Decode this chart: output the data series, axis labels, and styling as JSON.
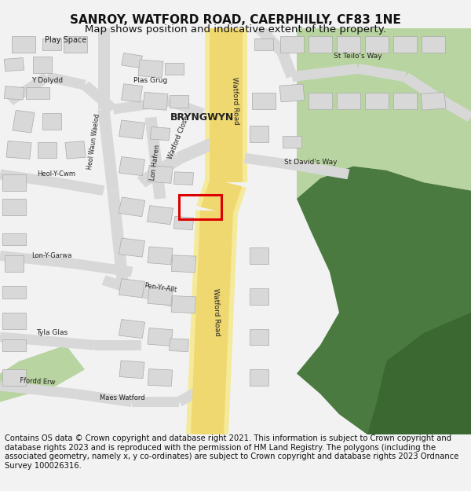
{
  "title": "SANROY, WATFORD ROAD, CAERPHILLY, CF83 1NE",
  "subtitle": "Map shows position and indicative extent of the property.",
  "footer": "Contains OS data © Crown copyright and database right 2021. This information is subject to Crown copyright and database rights 2023 and is reproduced with the permission of HM Land Registry. The polygons (including the associated geometry, namely x, y co-ordinates) are subject to Crown copyright and database rights 2023 Ordnance Survey 100026316.",
  "bg_color": "#f2f2f2",
  "map_bg": "#f8f8f8",
  "road_yellow": "#f0d870",
  "road_yellow_light": "#f5e99a",
  "road_gray": "#d8d8d8",
  "green_light": "#b8d4a0",
  "green_dark": "#4a7a40",
  "green_medium": "#6aaa5a",
  "building_color": "#d8d8d8",
  "building_stroke": "#aaaaaa",
  "plot_color": "#dd0000",
  "title_fontsize": 11,
  "subtitle_fontsize": 9.5,
  "footer_fontsize": 7.2
}
